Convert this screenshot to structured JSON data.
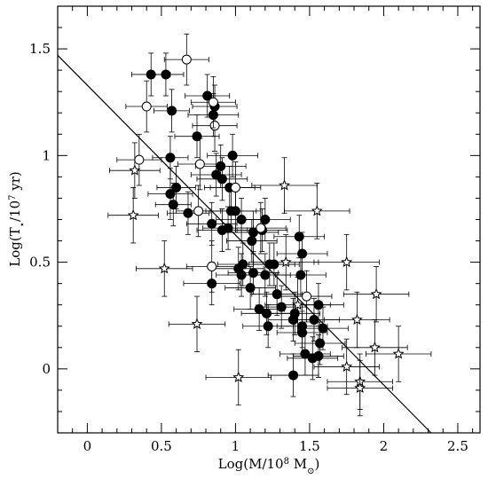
{
  "chart_data": {
    "type": "scatter",
    "title": "",
    "xlabel_parts": {
      "a": "Log(M/10",
      "sup": "8",
      "b": " M",
      "sub": "⊙",
      "c": ")"
    },
    "ylabel_parts": {
      "a": "Log(T",
      "sub": "⋆",
      "b": "/10",
      "sup": "7",
      "c": " yr)"
    },
    "xlim": [
      -0.2,
      2.65
    ],
    "ylim": [
      -0.3,
      1.7
    ],
    "xticks": [
      {
        "v": 0,
        "label": "0"
      },
      {
        "v": 0.5,
        "label": "0.5"
      },
      {
        "v": 1,
        "label": "1"
      },
      {
        "v": 1.5,
        "label": "1.5"
      },
      {
        "v": 2,
        "label": "2"
      },
      {
        "v": 2.5,
        "label": "2.5"
      }
    ],
    "yticks": [
      {
        "v": 0,
        "label": "0"
      },
      {
        "v": 0.5,
        "label": "0.5"
      },
      {
        "v": 1,
        "label": "1"
      },
      {
        "v": 1.5,
        "label": "1.5"
      }
    ],
    "fit_line": {
      "x": [
        -0.2,
        2.32
      ],
      "y": [
        1.47,
        -0.3
      ]
    },
    "series": [
      {
        "marker": "filled-circle",
        "points": [
          [
            0.43,
            1.38,
            0.13,
            0.1
          ],
          [
            0.53,
            1.38,
            0.12,
            0.1
          ],
          [
            0.57,
            1.21,
            0.12,
            0.1
          ],
          [
            0.56,
            0.99,
            0.12,
            0.1
          ],
          [
            0.56,
            0.82,
            0.15,
            0.12
          ],
          [
            0.58,
            0.77,
            0.12,
            0.1
          ],
          [
            0.6,
            0.85,
            0.13,
            0.1
          ],
          [
            0.68,
            0.73,
            0.14,
            0.1
          ],
          [
            0.74,
            1.09,
            0.15,
            0.1
          ],
          [
            0.81,
            1.28,
            0.15,
            0.1
          ],
          [
            0.85,
            1.19,
            0.17,
            0.1
          ],
          [
            0.86,
            1.23,
            0.15,
            0.1
          ],
          [
            0.87,
            0.91,
            0.17,
            0.1
          ],
          [
            0.9,
            0.95,
            0.17,
            0.1
          ],
          [
            0.91,
            0.89,
            0.17,
            0.1
          ],
          [
            0.96,
            0.85,
            0.17,
            0.1
          ],
          [
            0.98,
            1.0,
            0.17,
            0.1
          ],
          [
            0.97,
            0.74,
            0.17,
            0.1
          ],
          [
            0.95,
            0.66,
            0.17,
            0.1
          ],
          [
            1.0,
            0.74,
            0.17,
            0.1
          ],
          [
            1.04,
            0.7,
            0.17,
            0.1
          ],
          [
            0.91,
            0.65,
            0.17,
            0.1
          ],
          [
            0.84,
            0.68,
            0.17,
            0.1
          ],
          [
            0.84,
            0.4,
            0.19,
            0.1
          ],
          [
            1.02,
            0.47,
            0.17,
            0.1
          ],
          [
            1.04,
            0.44,
            0.17,
            0.1
          ],
          [
            1.05,
            0.49,
            0.17,
            0.1
          ],
          [
            1.1,
            0.38,
            0.17,
            0.1
          ],
          [
            1.11,
            0.6,
            0.17,
            0.1
          ],
          [
            1.12,
            0.64,
            0.17,
            0.1
          ],
          [
            1.12,
            0.45,
            0.17,
            0.1
          ],
          [
            1.16,
            0.28,
            0.17,
            0.1
          ],
          [
            1.18,
            0.65,
            0.17,
            0.1
          ],
          [
            1.2,
            0.7,
            0.17,
            0.1
          ],
          [
            1.2,
            0.44,
            0.17,
            0.1
          ],
          [
            1.21,
            0.26,
            0.17,
            0.1
          ],
          [
            1.22,
            0.2,
            0.17,
            0.1
          ],
          [
            1.23,
            0.49,
            0.17,
            0.1
          ],
          [
            1.26,
            0.49,
            0.17,
            0.1
          ],
          [
            1.28,
            0.35,
            0.17,
            0.1
          ],
          [
            1.31,
            0.29,
            0.17,
            0.1
          ],
          [
            1.4,
            0.26,
            0.17,
            0.1
          ],
          [
            1.39,
            0.23,
            0.17,
            0.1
          ],
          [
            1.43,
            0.62,
            0.17,
            0.1
          ],
          [
            1.45,
            0.54,
            0.17,
            0.1
          ],
          [
            1.44,
            0.44,
            0.17,
            0.1
          ],
          [
            1.45,
            0.2,
            0.17,
            0.1
          ],
          [
            1.45,
            0.17,
            0.17,
            0.1
          ],
          [
            1.47,
            0.07,
            0.17,
            0.1
          ],
          [
            1.52,
            0.05,
            0.17,
            0.1
          ],
          [
            1.53,
            0.23,
            0.17,
            0.1
          ],
          [
            1.56,
            0.3,
            0.17,
            0.1
          ],
          [
            1.57,
            0.12,
            0.17,
            0.1
          ],
          [
            1.56,
            0.06,
            0.17,
            0.1
          ],
          [
            1.59,
            0.19,
            0.17,
            0.1
          ],
          [
            1.39,
            -0.03,
            0.17,
            0.1
          ]
        ]
      },
      {
        "marker": "open-circle",
        "points": [
          [
            0.35,
            0.98,
            0.15,
            0.12
          ],
          [
            0.4,
            1.23,
            0.14,
            0.12
          ],
          [
            0.67,
            1.45,
            0.15,
            0.12
          ],
          [
            0.76,
            0.96,
            0.15,
            0.12
          ],
          [
            0.75,
            0.74,
            0.15,
            0.12
          ],
          [
            0.86,
            1.14,
            0.15,
            0.12
          ],
          [
            0.85,
            1.25,
            0.15,
            0.12
          ],
          [
            0.84,
            0.48,
            0.17,
            0.12
          ],
          [
            1.0,
            0.85,
            0.17,
            0.12
          ],
          [
            1.17,
            0.66,
            0.17,
            0.12
          ],
          [
            1.48,
            0.34,
            0.17,
            0.12
          ]
        ]
      },
      {
        "marker": "open-star",
        "points": [
          [
            0.32,
            0.93,
            0.17,
            0.13
          ],
          [
            0.31,
            0.72,
            0.17,
            0.13
          ],
          [
            0.52,
            0.47,
            0.19,
            0.13
          ],
          [
            0.74,
            0.21,
            0.19,
            0.13
          ],
          [
            1.02,
            -0.04,
            0.22,
            0.13
          ],
          [
            1.33,
            0.86,
            0.22,
            0.13
          ],
          [
            1.55,
            0.74,
            0.22,
            0.13
          ],
          [
            1.34,
            0.5,
            0.22,
            0.13
          ],
          [
            1.42,
            0.3,
            0.22,
            0.13
          ],
          [
            1.75,
            0.5,
            0.22,
            0.13
          ],
          [
            1.82,
            0.23,
            0.22,
            0.13
          ],
          [
            1.95,
            0.35,
            0.22,
            0.13
          ],
          [
            1.94,
            0.1,
            0.22,
            0.13
          ],
          [
            1.75,
            0.01,
            0.22,
            0.13
          ],
          [
            1.84,
            -0.06,
            0.22,
            0.13
          ],
          [
            1.84,
            -0.09,
            0.22,
            0.13
          ],
          [
            2.1,
            0.07,
            0.22,
            0.13
          ]
        ]
      }
    ]
  }
}
